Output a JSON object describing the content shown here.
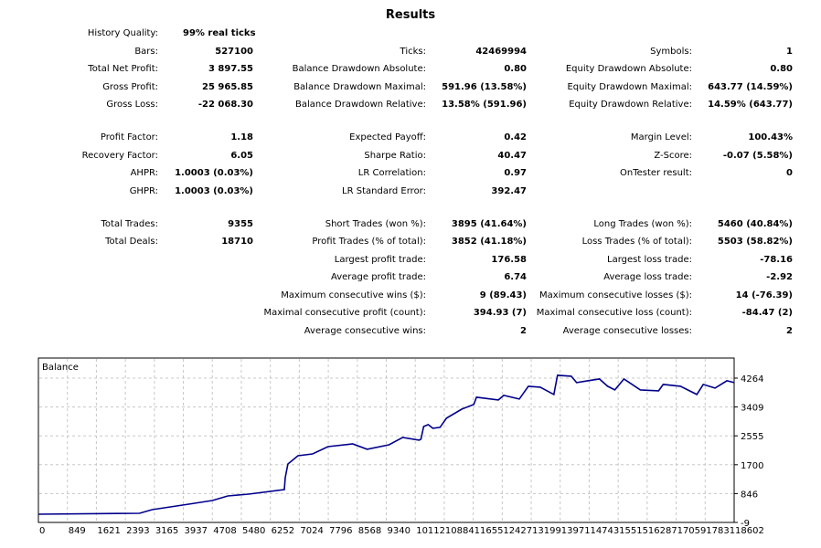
{
  "results": {
    "title": "Results",
    "sections": [
      [
        [
          {
            "label": "History Quality:",
            "value": "99% real ticks",
            "align": "left"
          },
          null,
          null
        ],
        [
          {
            "label": "Bars:",
            "value": "527100"
          },
          {
            "label": "Ticks:",
            "value": "42469994"
          },
          {
            "label": "Symbols:",
            "value": "1"
          }
        ],
        [
          {
            "label": "Total Net Profit:",
            "value": "3 897.55"
          },
          {
            "label": "Balance Drawdown Absolute:",
            "value": "0.80"
          },
          {
            "label": "Equity Drawdown Absolute:",
            "value": "0.80"
          }
        ],
        [
          {
            "label": "Gross Profit:",
            "value": "25 965.85"
          },
          {
            "label": "Balance Drawdown Maximal:",
            "value": "591.96 (13.58%)"
          },
          {
            "label": "Equity Drawdown Maximal:",
            "value": "643.77 (14.59%)"
          }
        ],
        [
          {
            "label": "Gross Loss:",
            "value": "-22 068.30"
          },
          {
            "label": "Balance Drawdown Relative:",
            "value": "13.58% (591.96)"
          },
          {
            "label": "Equity Drawdown Relative:",
            "value": "14.59% (643.77)"
          }
        ]
      ],
      [
        [
          {
            "label": "Profit Factor:",
            "value": "1.18"
          },
          {
            "label": "Expected Payoff:",
            "value": "0.42"
          },
          {
            "label": "Margin Level:",
            "value": "100.43%"
          }
        ],
        [
          {
            "label": "Recovery Factor:",
            "value": "6.05"
          },
          {
            "label": "Sharpe Ratio:",
            "value": "40.47"
          },
          {
            "label": "Z-Score:",
            "value": "-0.07 (5.58%)"
          }
        ],
        [
          {
            "label": "AHPR:",
            "value": "1.0003 (0.03%)"
          },
          {
            "label": "LR Correlation:",
            "value": "0.97"
          },
          {
            "label": "OnTester result:",
            "value": "0"
          }
        ],
        [
          {
            "label": "GHPR:",
            "value": "1.0003 (0.03%)"
          },
          {
            "label": "LR Standard Error:",
            "value": "392.47"
          },
          null
        ]
      ],
      [
        [
          {
            "label": "Total Trades:",
            "value": "9355"
          },
          {
            "label": "Short Trades (won %):",
            "value": "3895 (41.64%)"
          },
          {
            "label": "Long Trades (won %):",
            "value": "5460 (40.84%)"
          }
        ],
        [
          {
            "label": "Total Deals:",
            "value": "18710"
          },
          {
            "label": "Profit Trades (% of total):",
            "value": "3852 (41.18%)"
          },
          {
            "label": "Loss Trades (% of total):",
            "value": "5503 (58.82%)"
          }
        ],
        [
          null,
          {
            "label": "Largest profit trade:",
            "value": "176.58"
          },
          {
            "label": "Largest loss trade:",
            "value": "-78.16"
          }
        ],
        [
          null,
          {
            "label": "Average profit trade:",
            "value": "6.74"
          },
          {
            "label": "Average loss trade:",
            "value": "-2.92"
          }
        ],
        [
          null,
          {
            "label": "Maximum consecutive wins ($):",
            "value": "9 (89.43)"
          },
          {
            "label": "Maximum consecutive losses ($):",
            "value": "14 (-76.39)"
          }
        ],
        [
          null,
          {
            "label": "Maximal consecutive profit (count):",
            "value": "394.93 (7)"
          },
          {
            "label": "Maximal consecutive loss (count):",
            "value": "-84.47 (2)"
          }
        ],
        [
          null,
          {
            "label": "Average consecutive wins:",
            "value": "2"
          },
          {
            "label": "Average consecutive losses:",
            "value": "2"
          }
        ]
      ]
    ]
  },
  "chart_data": {
    "type": "line",
    "title": "Balance",
    "line_color": "#00008b",
    "grid": true,
    "xlim": [
      0,
      18602
    ],
    "ylim": [
      -9,
      4264
    ],
    "x_ticks": [
      "0",
      "849",
      "1621",
      "2393",
      "3165",
      "3937",
      "4708",
      "5480",
      "6252",
      "7024",
      "7796",
      "8568",
      "9340",
      "10112",
      "10884",
      "11655",
      "12427",
      "13199",
      "13971",
      "14743",
      "15515",
      "16287",
      "17059",
      "17831",
      "18602"
    ],
    "y_ticks": [
      "4264",
      "3409",
      "2555",
      "1700",
      "846",
      "-9"
    ],
    "series": [
      {
        "x": [
          0,
          2703,
          3044,
          4018,
          4651,
          5065,
          5625,
          6575,
          6599,
          6672,
          6940,
          7330,
          7744,
          8401,
          8791,
          9375,
          9740,
          10178,
          10227,
          10300,
          10422,
          10544,
          10739,
          10909,
          11323,
          11640,
          11713,
          12297,
          12443,
          12857,
          13100,
          13417,
          13782,
          13880,
          14245,
          14391,
          14999,
          15218,
          15413,
          15657,
          16095,
          16582,
          16704,
          17166,
          17605,
          17776,
          18092,
          18409,
          18602
        ],
        "y": [
          235,
          262,
          370,
          532,
          640,
          776,
          830,
          965,
          1317,
          1723,
          1966,
          2020,
          2237,
          2318,
          2156,
          2291,
          2508,
          2427,
          2454,
          2832,
          2887,
          2778,
          2805,
          3076,
          3346,
          3482,
          3698,
          3617,
          3752,
          3644,
          4023,
          3996,
          3779,
          4348,
          4321,
          4131,
          4240,
          4023,
          3915,
          4240,
          3915,
          3888,
          4077,
          4023,
          3779,
          4077,
          3969,
          4185,
          4131
        ]
      }
    ]
  }
}
